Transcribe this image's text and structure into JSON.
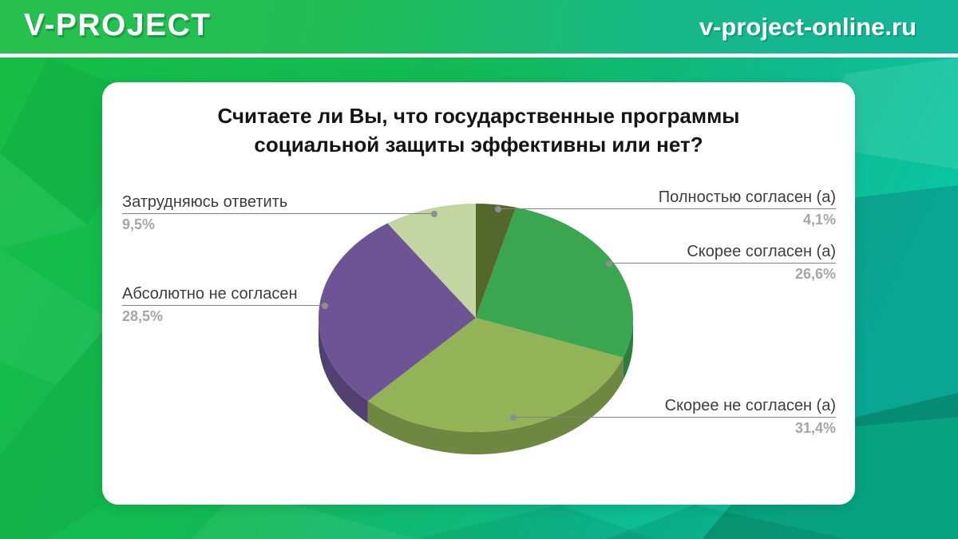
{
  "header": {
    "logo": "V-PROJECT",
    "site_url": "v-project-online.ru"
  },
  "card": {
    "title": "Считаете ли Вы, что государственные программы социальной защиты эффективны или нет?"
  },
  "chart_data": {
    "type": "pie",
    "style": "3d-pie, no legend, callout labels with percent values",
    "title": "Считаете ли Вы, что государственные программы социальной защиты эффективны или нет?",
    "labels": [
      "Полностью согласен (а)",
      "Скорее согласен (а)",
      "Скорее не согласен (а)",
      "Абсолютно не согласен",
      "Затрудняюсь ответить"
    ],
    "values": [
      4.1,
      26.6,
      31.4,
      28.5,
      9.5
    ],
    "display_values": [
      "4,1%",
      "26,6%",
      "31,4%",
      "28,5%",
      "9,5%"
    ],
    "colors": [
      "#55682b",
      "#3aa64f",
      "#92b356",
      "#6d5494",
      "#c3d6a2"
    ],
    "start_angle": "12 o'clock, clockwise"
  },
  "colors": {
    "header_green": "#1fbd53",
    "header_teal": "#12b59a",
    "background_green": "#12b657",
    "card_bg": "#ffffff",
    "title_text": "#141414",
    "label_text": "#3d3d3d",
    "percent_text": "#a6a6a6",
    "callout_line": "#828282"
  }
}
